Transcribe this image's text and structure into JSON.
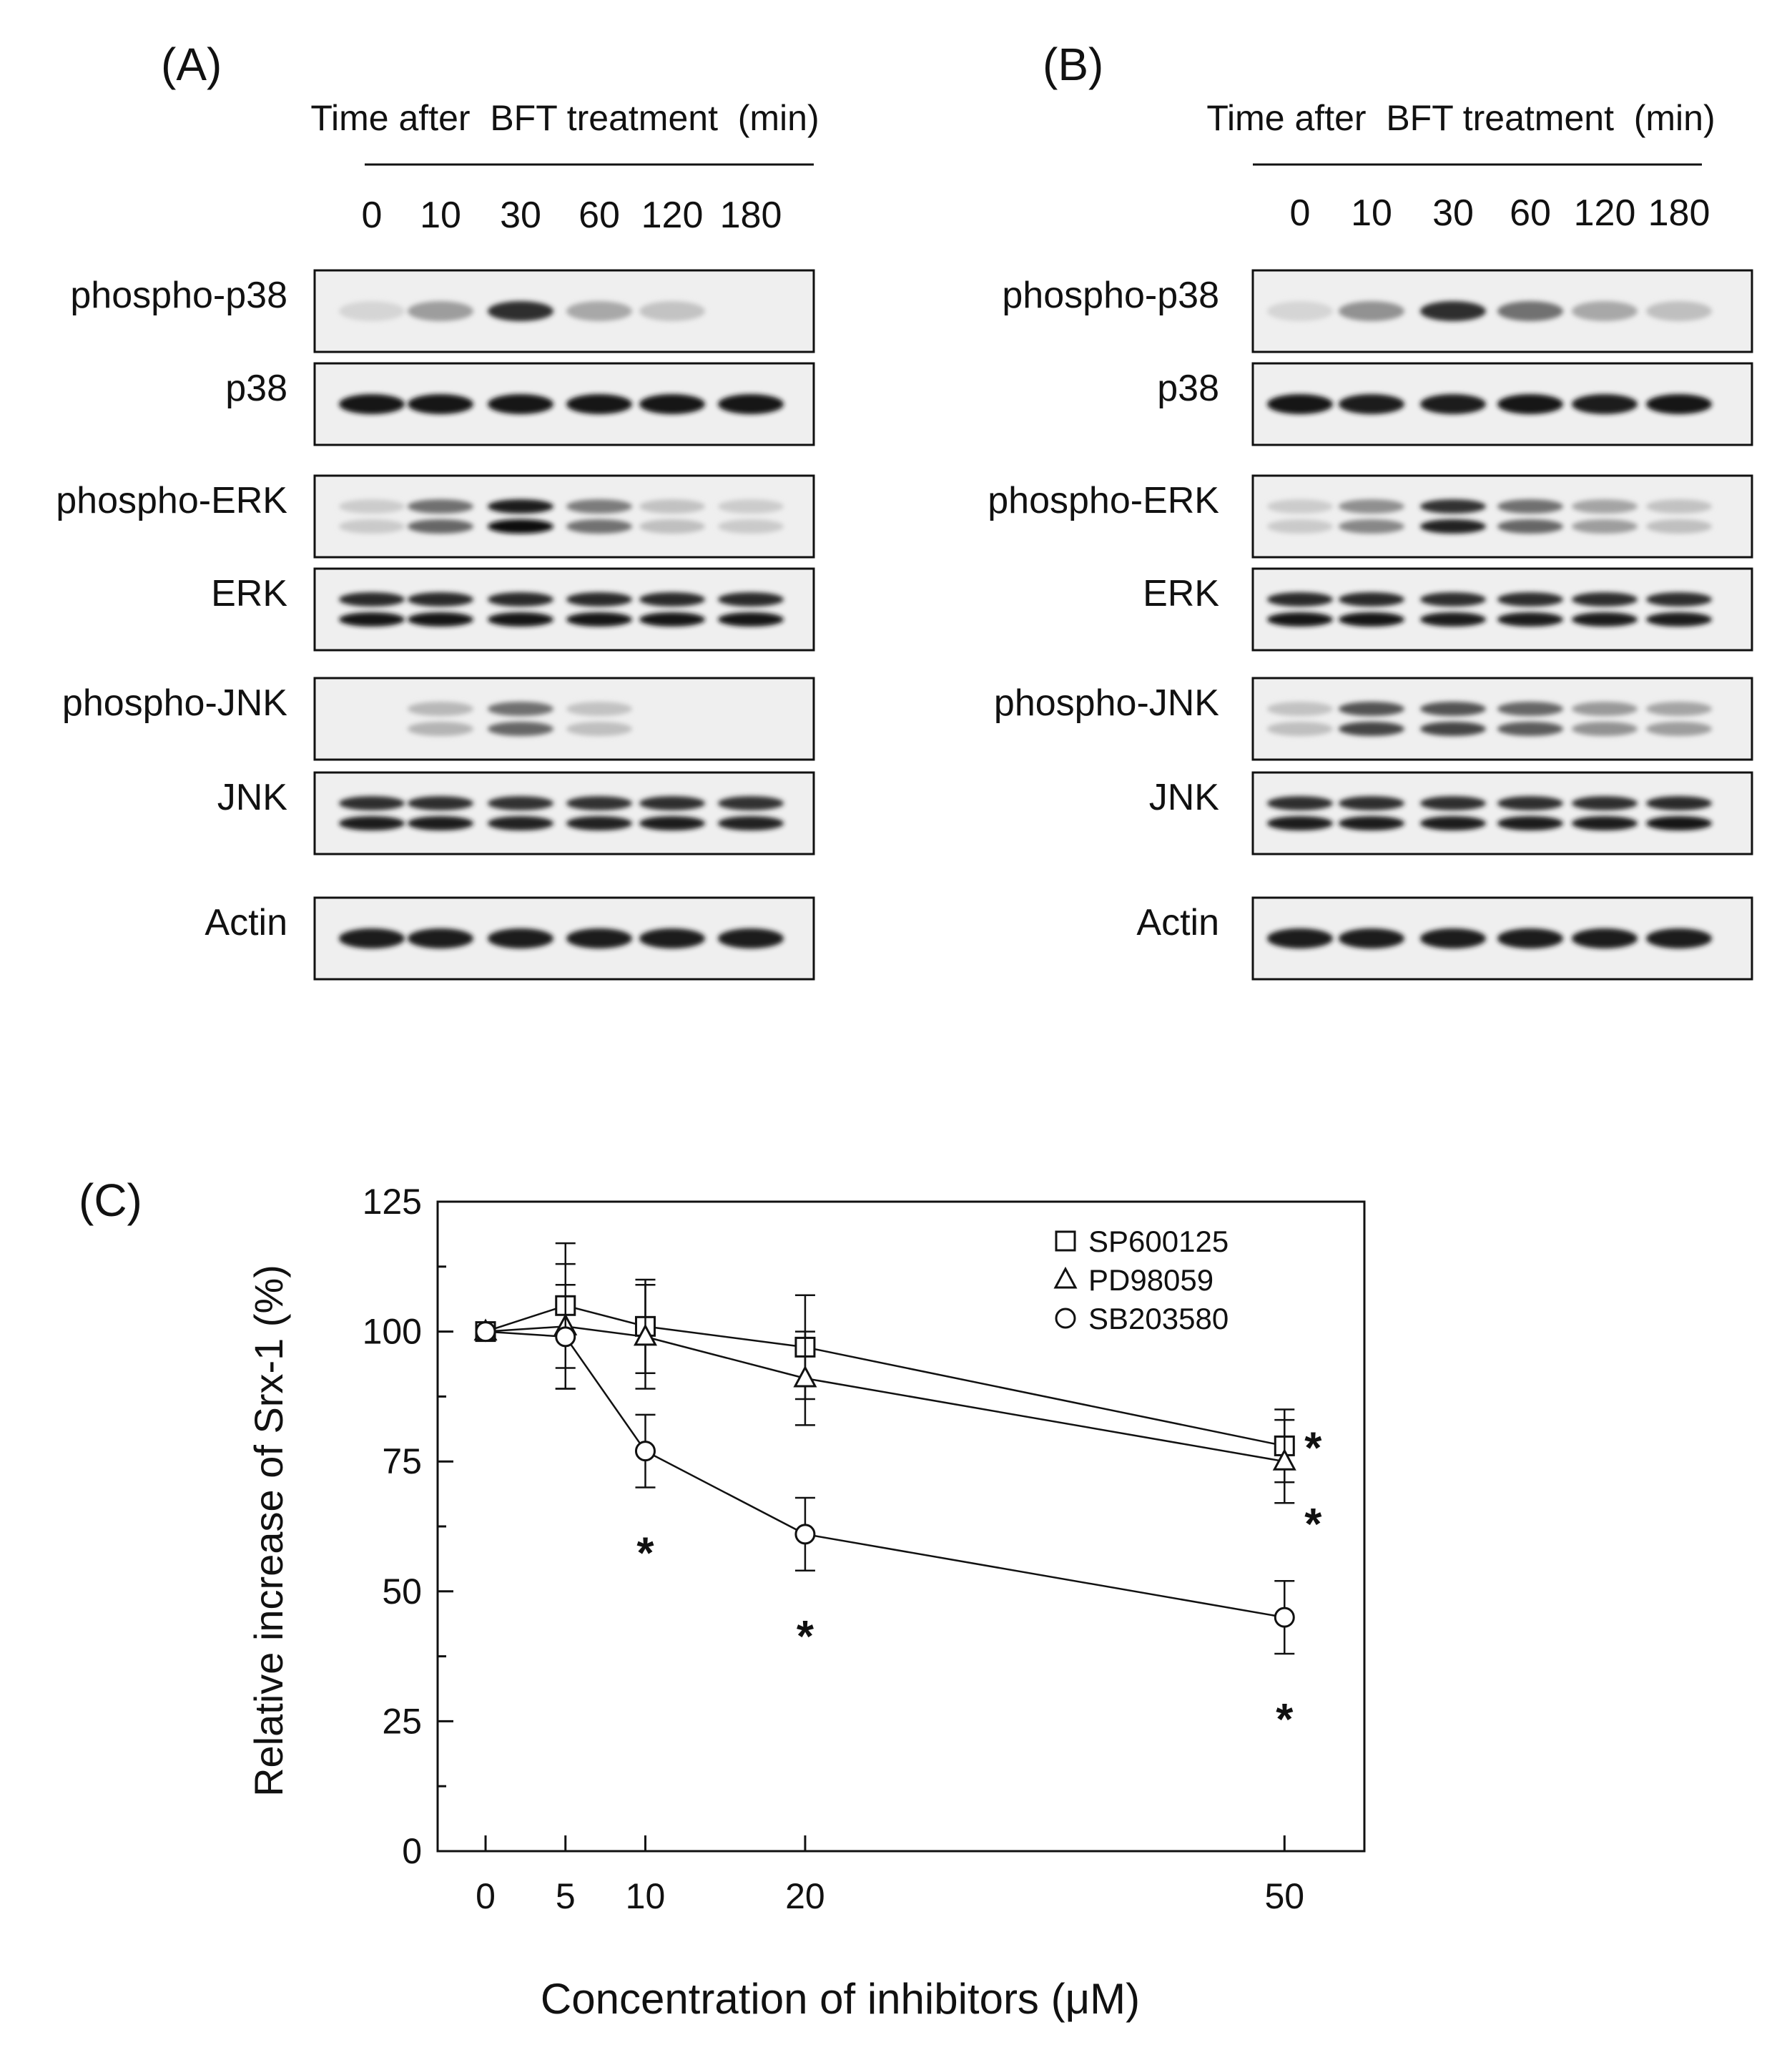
{
  "panels": {
    "A": {
      "label": "(A)",
      "header": "Time after  BFT treatment  (min)",
      "times": [
        "0",
        "10",
        "30",
        "60",
        "120",
        "180"
      ],
      "blots": [
        {
          "label": "phospho-p38",
          "bands": 1,
          "intensity": [
            0.1,
            0.35,
            0.85,
            0.3,
            0.18,
            0.0
          ]
        },
        {
          "label": "p38",
          "bands": 1,
          "intensity": [
            0.95,
            0.95,
            0.95,
            0.95,
            0.95,
            0.95
          ]
        },
        {
          "label": "phospho-ERK",
          "bands": 2,
          "intensity": [
            0.15,
            0.6,
            1.0,
            0.55,
            0.2,
            0.15
          ]
        },
        {
          "label": "ERK",
          "bands": 2,
          "intensity": [
            0.95,
            0.95,
            0.95,
            0.95,
            0.95,
            0.95
          ]
        },
        {
          "label": "phospho-JNK",
          "bands": 2,
          "intensity": [
            0.0,
            0.25,
            0.6,
            0.2,
            0.0,
            0.0
          ]
        },
        {
          "label": "JNK",
          "bands": 2,
          "intensity": [
            0.92,
            0.92,
            0.9,
            0.9,
            0.92,
            0.9
          ]
        },
        {
          "label": "Actin",
          "bands": 1,
          "intensity": [
            0.92,
            0.92,
            0.92,
            0.92,
            0.92,
            0.92
          ]
        }
      ]
    },
    "B": {
      "label": "(B)",
      "header": "Time after  BFT treatment  (min)",
      "times": [
        "0",
        "10",
        "30",
        "60",
        "120",
        "180"
      ],
      "blots": [
        {
          "label": "phospho-p38",
          "bands": 1,
          "intensity": [
            0.1,
            0.4,
            0.85,
            0.55,
            0.3,
            0.2
          ]
        },
        {
          "label": "p38",
          "bands": 1,
          "intensity": [
            0.95,
            0.92,
            0.92,
            0.95,
            0.92,
            0.95
          ]
        },
        {
          "label": "phospho-ERK",
          "bands": 2,
          "intensity": [
            0.15,
            0.45,
            0.9,
            0.6,
            0.35,
            0.2
          ]
        },
        {
          "label": "ERK",
          "bands": 2,
          "intensity": [
            0.95,
            0.95,
            0.92,
            0.92,
            0.92,
            0.92
          ]
        },
        {
          "label": "phospho-JNK",
          "bands": 2,
          "intensity": [
            0.2,
            0.75,
            0.75,
            0.65,
            0.4,
            0.35
          ]
        },
        {
          "label": "JNK",
          "bands": 2,
          "intensity": [
            0.92,
            0.92,
            0.92,
            0.92,
            0.92,
            0.95
          ]
        },
        {
          "label": "Actin",
          "bands": 1,
          "intensity": [
            0.92,
            0.92,
            0.92,
            0.92,
            0.92,
            0.92
          ]
        }
      ]
    }
  },
  "chart_data": {
    "panel_label": "(C)",
    "type": "line",
    "xlabel": "Concentration of inhibitors (μM)",
    "ylabel": "Relative increase of Srx-1 (%)",
    "x": [
      0,
      5,
      10,
      20,
      50
    ],
    "x_ticks": [
      "0",
      "5",
      "10",
      "20",
      "50"
    ],
    "xlim": [
      -3,
      55
    ],
    "ylim": [
      0,
      125
    ],
    "y_ticks": [
      "0",
      "25",
      "50",
      "75",
      "100",
      "125"
    ],
    "legend_position": "top-right",
    "grid": false,
    "series": [
      {
        "name": "SP600125",
        "marker": "square",
        "values": [
          100,
          105,
          101,
          97,
          78
        ],
        "errors": [
          0,
          12,
          9,
          10,
          7
        ],
        "significant": [
          false,
          false,
          false,
          false,
          true
        ]
      },
      {
        "name": "PD98059",
        "marker": "triangle",
        "values": [
          100,
          101,
          99,
          91,
          75
        ],
        "errors": [
          0,
          12,
          10,
          9,
          8
        ],
        "significant": [
          false,
          false,
          false,
          false,
          true
        ]
      },
      {
        "name": "SB203580",
        "marker": "circle",
        "values": [
          100,
          99,
          77,
          61,
          45
        ],
        "errors": [
          0,
          10,
          7,
          7,
          7
        ],
        "significant": [
          false,
          false,
          true,
          true,
          true
        ]
      }
    ],
    "significance_mark": "*"
  }
}
